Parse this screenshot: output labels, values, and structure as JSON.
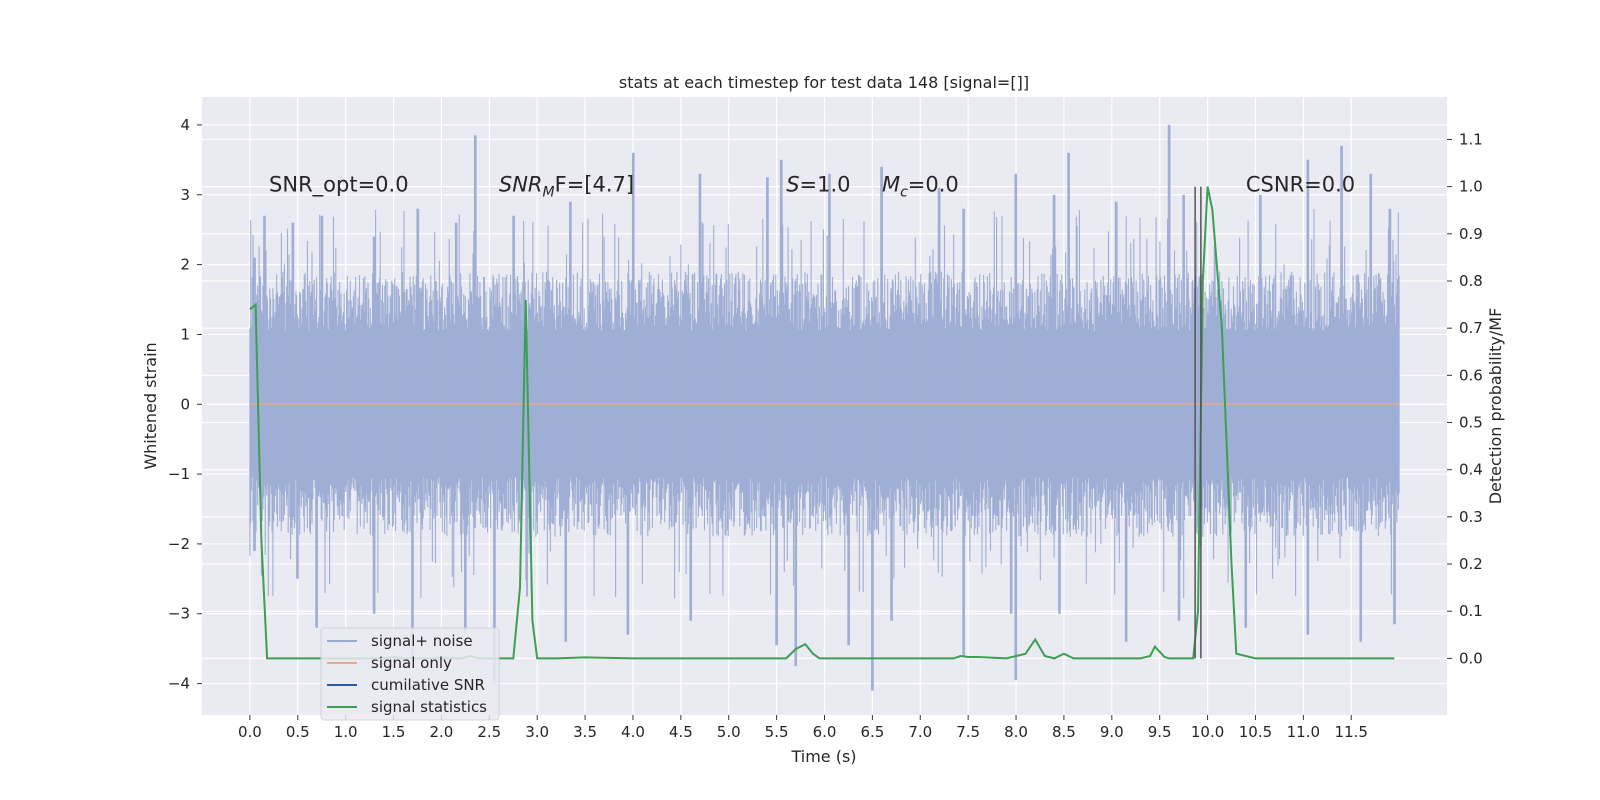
{
  "chart_data": {
    "type": "line",
    "title": "stats at each timestep for test data 148 [signal=[]]",
    "xlabel": "Time (s)",
    "ylabel": "Whitened strain",
    "y2label": "Detection probability/MF",
    "xlim": [
      -0.5,
      12.5
    ],
    "ylim": [
      -4.45,
      4.4
    ],
    "y2lim": [
      -0.12,
      1.19
    ],
    "xticks": [
      0.0,
      0.5,
      1.0,
      1.5,
      2.0,
      2.5,
      3.0,
      3.5,
      4.0,
      4.5,
      5.0,
      5.5,
      6.0,
      6.5,
      7.0,
      7.5,
      8.0,
      8.5,
      9.0,
      9.5,
      10.0,
      10.5,
      11.0,
      11.5
    ],
    "xtick_labels": [
      "0.0",
      "0.5",
      "1.0",
      "1.5",
      "2.0",
      "2.5",
      "3.0",
      "3.5",
      "4.0",
      "4.5",
      "5.0",
      "5.5",
      "6.0",
      "6.5",
      "7.0",
      "7.5",
      "8.0",
      "8.5",
      "9.0",
      "9.5",
      "10.0",
      "10.5",
      "11.0",
      "11.5"
    ],
    "yticks": [
      -4,
      -3,
      -2,
      -1,
      0,
      1,
      2,
      3,
      4
    ],
    "ytick_labels": [
      "−4",
      "−3",
      "−2",
      "−1",
      "0",
      "1",
      "2",
      "3",
      "4"
    ],
    "y2ticks": [
      0.0,
      0.1,
      0.2,
      0.3,
      0.4,
      0.5,
      0.6,
      0.7,
      0.8,
      0.9,
      1.0,
      1.1
    ],
    "y2tick_labels": [
      "0.0",
      "0.1",
      "0.2",
      "0.3",
      "0.4",
      "0.5",
      "0.6",
      "0.7",
      "0.8",
      "0.9",
      "1.0",
      "1.1"
    ],
    "grid": true,
    "legend_position": "lower-left",
    "annotations": [
      {
        "text": "SNR_opt=0.0",
        "x": 0.2,
        "y": 3.05
      },
      {
        "text": "SNR",
        "sub": "M",
        "suffix": "F=[4.7]",
        "italic_prefix": true,
        "x": 2.6,
        "y": 3.05
      },
      {
        "text": "S",
        "suffix": "=1.0",
        "italic_prefix": true,
        "x": 5.6,
        "y": 3.05
      },
      {
        "text": "M",
        "sub": "c",
        "suffix": "=0.0",
        "italic_prefix": true,
        "x": 6.6,
        "y": 3.05
      },
      {
        "text": "CSNR=0.0",
        "x": 10.4,
        "y": 3.05
      }
    ],
    "vlines": [
      {
        "x": 9.87,
        "ymin": 0.0,
        "ymax": 1.0,
        "color": "#555555"
      },
      {
        "x": 9.93,
        "ymin": 0.0,
        "ymax": 1.0,
        "color": "#555555"
      }
    ],
    "series": [
      {
        "name": "signal+ noise",
        "axis": "left",
        "color": "#9aabd2",
        "style": "noise",
        "x_range": [
          0.0,
          12.0
        ],
        "upper_typical": 1.9,
        "lower_typical": -1.9,
        "upper_peaks": [
          [
            0.05,
            2.1
          ],
          [
            0.15,
            2.7
          ],
          [
            0.45,
            2.6
          ],
          [
            0.75,
            2.7
          ],
          [
            1.3,
            2.4
          ],
          [
            1.75,
            2.8
          ],
          [
            2.15,
            2.6
          ],
          [
            2.35,
            3.85
          ],
          [
            2.75,
            2.7
          ],
          [
            3.35,
            2.9
          ],
          [
            4.0,
            3.6
          ],
          [
            4.7,
            3.3
          ],
          [
            5.4,
            3.25
          ],
          [
            5.55,
            3.5
          ],
          [
            6.05,
            3.3
          ],
          [
            6.6,
            3.4
          ],
          [
            7.2,
            3.1
          ],
          [
            7.45,
            2.8
          ],
          [
            8.0,
            3.3
          ],
          [
            8.4,
            3.0
          ],
          [
            8.55,
            3.6
          ],
          [
            9.05,
            2.9
          ],
          [
            9.6,
            4.0
          ],
          [
            9.75,
            3.0
          ],
          [
            10.55,
            3.0
          ],
          [
            11.05,
            3.5
          ],
          [
            11.4,
            3.7
          ],
          [
            11.7,
            3.3
          ],
          [
            11.9,
            2.8
          ]
        ],
        "lower_peaks": [
          [
            0.05,
            -2.1
          ],
          [
            0.5,
            -2.5
          ],
          [
            0.7,
            -3.2
          ],
          [
            1.3,
            -3.0
          ],
          [
            1.7,
            -3.6
          ],
          [
            2.25,
            -3.3
          ],
          [
            2.55,
            -4.0
          ],
          [
            3.3,
            -3.4
          ],
          [
            3.95,
            -3.3
          ],
          [
            4.6,
            -3.1
          ],
          [
            5.5,
            -3.45
          ],
          [
            5.7,
            -3.75
          ],
          [
            6.25,
            -3.45
          ],
          [
            6.5,
            -4.1
          ],
          [
            6.7,
            -3.1
          ],
          [
            7.45,
            -3.6
          ],
          [
            7.95,
            -3.0
          ],
          [
            8.0,
            -3.95
          ],
          [
            8.45,
            -3.0
          ],
          [
            9.15,
            -3.4
          ],
          [
            9.7,
            -3.1
          ],
          [
            10.4,
            -3.2
          ],
          [
            11.05,
            -3.3
          ],
          [
            11.6,
            -3.4
          ],
          [
            11.95,
            -3.15
          ]
        ]
      },
      {
        "name": "signal only",
        "axis": "left",
        "color": "#e8a98b",
        "x": [
          0.0,
          12.0
        ],
        "y": [
          0.0,
          0.0
        ]
      },
      {
        "name": "cumilative SNR",
        "axis": "left",
        "color": "#2e5aa6",
        "x": [],
        "y": []
      },
      {
        "name": "signal statistics",
        "axis": "right",
        "color": "#3c9f51",
        "x": [
          0.0,
          0.06,
          0.12,
          0.18,
          0.3,
          0.5,
          1.0,
          1.4,
          1.5,
          1.6,
          2.0,
          2.2,
          2.3,
          2.4,
          2.6,
          2.75,
          2.82,
          2.88,
          2.95,
          3.0,
          3.2,
          3.5,
          4.0,
          5.0,
          5.6,
          5.7,
          5.8,
          5.88,
          5.95,
          6.0,
          6.5,
          7.0,
          7.35,
          7.42,
          7.5,
          7.6,
          7.9,
          8.1,
          8.2,
          8.3,
          8.4,
          8.5,
          8.6,
          9.0,
          9.3,
          9.4,
          9.45,
          9.55,
          9.6,
          9.85,
          9.9,
          9.95,
          10.0,
          10.05,
          10.15,
          10.25,
          10.3,
          10.5,
          11.0,
          11.5,
          11.95
        ],
        "y": [
          0.74,
          0.75,
          0.25,
          0.0,
          0.0,
          0.0,
          0.0,
          0.0,
          0.003,
          0.0,
          0.0,
          0.0,
          0.005,
          0.0,
          0.0,
          0.0,
          0.15,
          0.76,
          0.08,
          0.0,
          0.0,
          0.002,
          0.0,
          0.0,
          0.0,
          0.02,
          0.03,
          0.01,
          0.0,
          0.0,
          0.0,
          0.0,
          0.0,
          0.005,
          0.003,
          0.003,
          0.0,
          0.01,
          0.04,
          0.005,
          0.0,
          0.01,
          0.0,
          0.0,
          0.0,
          0.005,
          0.025,
          0.003,
          0.0,
          0.0,
          0.1,
          0.8,
          1.0,
          0.95,
          0.7,
          0.2,
          0.01,
          0.0,
          0.0,
          0.0,
          0.0
        ]
      }
    ]
  }
}
